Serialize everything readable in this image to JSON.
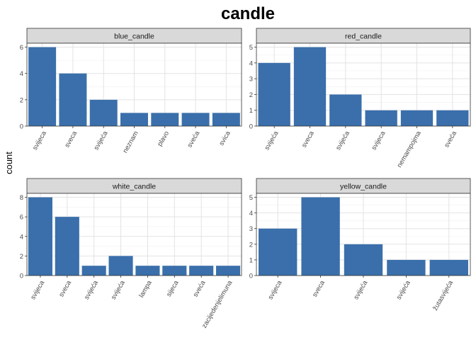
{
  "chart_data": {
    "type": "bar",
    "title": "candle",
    "ylabel": "count",
    "xlabel": "",
    "bar_color": "#3a6fab",
    "strip_fill": "#d9d9d9",
    "grid": true,
    "panels": [
      {
        "name": "blue_candle",
        "categories": [
          "svijeca",
          "sveca",
          "svijeća",
          "neznam",
          "plavo",
          "sveća",
          "svica"
        ],
        "values": [
          6,
          4,
          2,
          1,
          1,
          1,
          1
        ],
        "ylim": [
          0,
          6.3
        ],
        "yticks": [
          0,
          2,
          4,
          6
        ]
      },
      {
        "name": "red_candle",
        "categories": [
          "svijeća",
          "sveca",
          "svijeća",
          "svijeca",
          "nemampojma",
          "sveća"
        ],
        "values": [
          4,
          5,
          2,
          1,
          1,
          1
        ],
        "ylim": [
          0,
          5.25
        ],
        "yticks": [
          0,
          1,
          2,
          3,
          4,
          5
        ]
      },
      {
        "name": "white_candle",
        "categories": [
          "svijeca",
          "sveca",
          "svijeća",
          "svijeća",
          "lampa",
          "sijeca",
          "sveća",
          "zacijedenjelimuna"
        ],
        "values": [
          8,
          6,
          1,
          2,
          1,
          1,
          1,
          1
        ],
        "ylim": [
          0,
          8.4
        ],
        "yticks": [
          0,
          2,
          4,
          6,
          8
        ]
      },
      {
        "name": "yellow_candle",
        "categories": [
          "svijeca",
          "sveca",
          "svijeća",
          "svijeća",
          "žutasvijeća"
        ],
        "values": [
          3,
          5,
          2,
          1,
          1
        ],
        "ylim": [
          0,
          5.25
        ],
        "yticks": [
          0,
          1,
          2,
          3,
          4,
          5
        ]
      }
    ]
  }
}
